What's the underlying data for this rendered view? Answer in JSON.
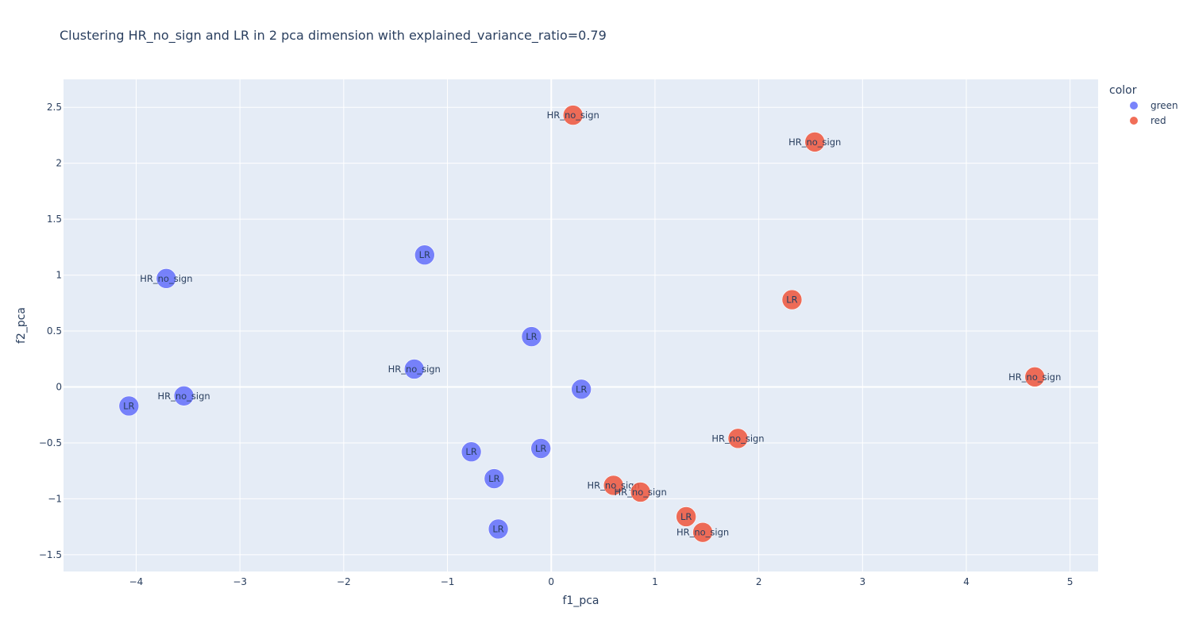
{
  "chart_data": {
    "type": "scatter",
    "title": "Clustering HR_no_sign and LR in 2 pca dimension with explained_variance_ratio=0.79",
    "xlabel": "f1_pca",
    "ylabel": "f2_pca",
    "xlim": [
      -4.7,
      5.27
    ],
    "ylim": [
      -1.65,
      2.75
    ],
    "xticks": [
      -4,
      -3,
      -2,
      -1,
      0,
      1,
      2,
      3,
      4,
      5
    ],
    "xtick_labels": [
      "−4",
      "−3",
      "−2",
      "−1",
      "0",
      "1",
      "2",
      "3",
      "4",
      "5"
    ],
    "yticks": [
      -1.5,
      -1,
      -0.5,
      0,
      0.5,
      1,
      1.5,
      2,
      2.5
    ],
    "ytick_labels": [
      "−1.5",
      "−1",
      "−0.5",
      "0",
      "0.5",
      "1",
      "1.5",
      "2",
      "2.5"
    ],
    "grid": true,
    "plot_bgcolor": "#e5ecf6",
    "legend": {
      "title": "color",
      "placement": "top-right-outside",
      "entries": [
        {
          "name": "green",
          "color": "#636efa"
        },
        {
          "name": "red",
          "color": "#ef553b"
        }
      ]
    },
    "series": [
      {
        "name": "green",
        "color": "#636efa",
        "points": [
          {
            "x": -1.22,
            "y": 1.18,
            "label": "LR"
          },
          {
            "x": -3.71,
            "y": 0.97,
            "label": "HR_no_sign"
          },
          {
            "x": -0.19,
            "y": 0.45,
            "label": "LR"
          },
          {
            "x": -1.32,
            "y": 0.16,
            "label": "HR_no_sign"
          },
          {
            "x": 0.29,
            "y": -0.02,
            "label": "LR"
          },
          {
            "x": -3.54,
            "y": -0.08,
            "label": "HR_no_sign"
          },
          {
            "x": -4.07,
            "y": -0.17,
            "label": "LR"
          },
          {
            "x": -0.1,
            "y": -0.55,
            "label": "LR"
          },
          {
            "x": -0.77,
            "y": -0.58,
            "label": "LR"
          },
          {
            "x": -0.55,
            "y": -0.82,
            "label": "LR"
          },
          {
            "x": -0.51,
            "y": -1.27,
            "label": "LR"
          }
        ]
      },
      {
        "name": "red",
        "color": "#ef553b",
        "points": [
          {
            "x": 0.21,
            "y": 2.43,
            "label": "HR_no_sign"
          },
          {
            "x": 2.54,
            "y": 2.19,
            "label": "HR_no_sign"
          },
          {
            "x": 2.32,
            "y": 0.78,
            "label": "LR"
          },
          {
            "x": 4.66,
            "y": 0.09,
            "label": "HR_no_sign"
          },
          {
            "x": 1.8,
            "y": -0.46,
            "label": "HR_no_sign"
          },
          {
            "x": 0.6,
            "y": -0.88,
            "label": "HR_no_sign"
          },
          {
            "x": 0.86,
            "y": -0.94,
            "label": "HR_no_sign"
          },
          {
            "x": 1.3,
            "y": -1.16,
            "label": "LR"
          },
          {
            "x": 1.46,
            "y": -1.3,
            "label": "HR_no_sign"
          }
        ]
      }
    ]
  }
}
